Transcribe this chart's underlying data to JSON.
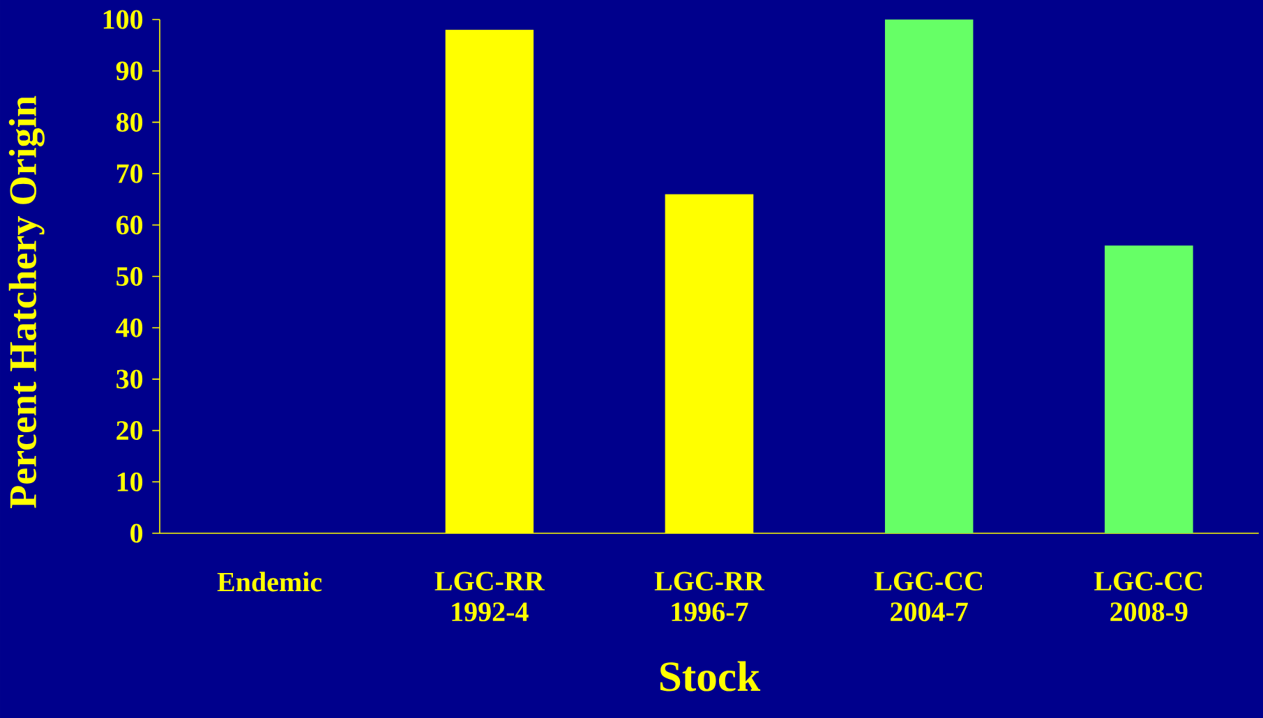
{
  "chart_data": {
    "type": "bar",
    "xlabel": "Stock",
    "ylabel": "Percent Hatchery Origin",
    "categories": [
      "Endemic",
      "LGC-RR 1992-4",
      "LGC-RR 1996-7",
      "LGC-CC 2004-7",
      "LGC-CC 2008-9"
    ],
    "values": [
      0,
      98,
      66,
      100,
      56
    ],
    "colors": [
      "#ffff00",
      "#ffff00",
      "#ffff00",
      "#66ff66",
      "#66ff66"
    ],
    "ylim": [
      0,
      100
    ],
    "yticks": [
      0,
      10,
      20,
      30,
      40,
      50,
      60,
      70,
      80,
      90,
      100
    ]
  }
}
